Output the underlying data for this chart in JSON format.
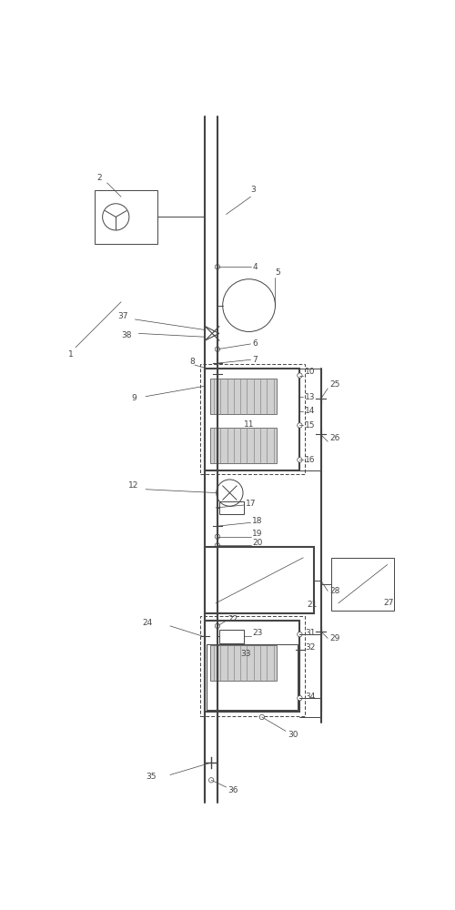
{
  "bg_color": "#ffffff",
  "line_color": "#444444",
  "thick_line": 1.5,
  "thin_line": 0.7,
  "fig_width": 5.0,
  "fig_height": 10.0,
  "dpi": 100,
  "label_fontsize": 6.5,
  "label_color": "#444444"
}
